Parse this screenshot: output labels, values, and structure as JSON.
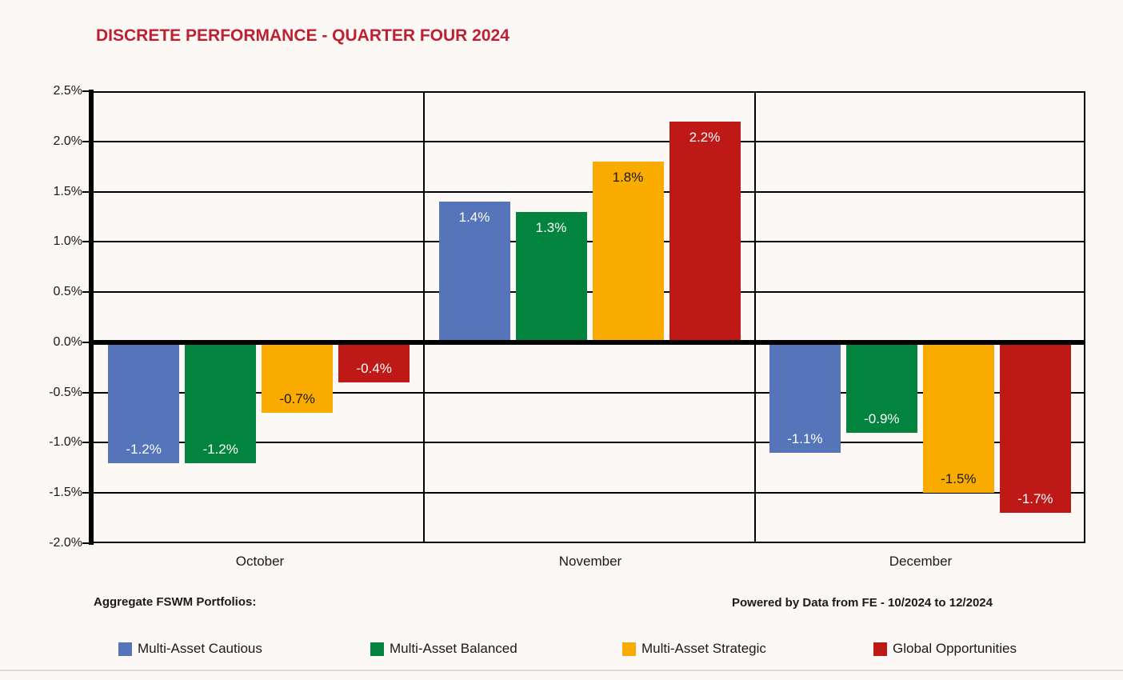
{
  "title": "DISCRETE PERFORMANCE - QUARTER FOUR 2024",
  "footer": {
    "left_note": "Aggregate FSWM Portfolios:",
    "right_note": "Powered by Data from FE - 10/2024 to 12/2024"
  },
  "legend": [
    {
      "label": "Multi-Asset Cautious",
      "color": "#5574B9"
    },
    {
      "label": "Multi-Asset Balanced",
      "color": "#02843F"
    },
    {
      "label": "Multi-Asset Strategic",
      "color": "#F9AB00"
    },
    {
      "label": "Global Opportunities",
      "color": "#BE1817"
    }
  ],
  "colors": {
    "background": "#FCF8F5",
    "title_text": "#BE2033",
    "axis_line": "#000000",
    "text": "#1A1A1A",
    "bottom_rule": "#DFD9D6"
  },
  "chart_data": {
    "type": "bar",
    "title": "DISCRETE PERFORMANCE - QUARTER FOUR 2024",
    "categories": [
      "October",
      "November",
      "December"
    ],
    "series": [
      {
        "name": "Multi-Asset Cautious",
        "color": "#5574B9",
        "label_color": "#FFFFFF",
        "values": [
          -1.2,
          1.4,
          -1.1
        ],
        "labels": [
          "-1.2%",
          "1.4%",
          "-1.1%"
        ]
      },
      {
        "name": "Multi-Asset Balanced",
        "color": "#02843F",
        "label_color": "#FFFFFF",
        "values": [
          -1.2,
          1.3,
          -0.9
        ],
        "labels": [
          "-1.2%",
          "1.3%",
          "-0.9%"
        ]
      },
      {
        "name": "Multi-Asset Strategic",
        "color": "#F9AB00",
        "label_color": "#1A1A1A",
        "values": [
          -0.7,
          1.8,
          -1.5
        ],
        "labels": [
          "-0.7%",
          "1.8%",
          "-1.5%"
        ]
      },
      {
        "name": "Global Opportunities",
        "color": "#BE1817",
        "label_color": "#FFFFFF",
        "values": [
          -0.4,
          2.2,
          -1.7
        ],
        "labels": [
          "-0.4%",
          "2.2%",
          "-1.7%"
        ]
      }
    ],
    "y_axis": {
      "min": -2.0,
      "max": 2.5,
      "step": 0.5,
      "tick_labels": [
        "2.5%",
        "2.0%",
        "1.5%",
        "1.0%",
        "0.5%",
        "0.0%",
        "-0.5%",
        "-1.0%",
        "-1.5%",
        "-2.0%"
      ]
    },
    "grid": true,
    "legend_position": "bottom",
    "xlabel": "",
    "ylabel": ""
  }
}
